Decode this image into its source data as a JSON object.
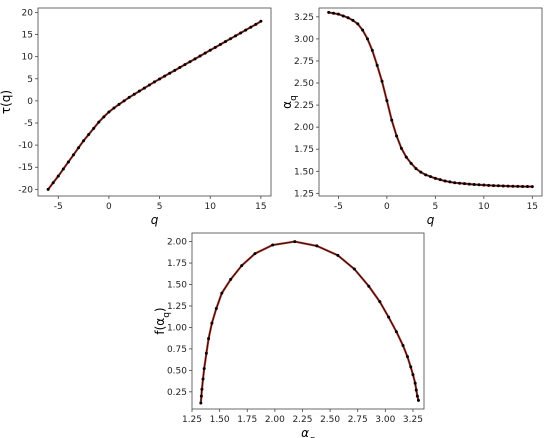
{
  "colors": {
    "line": "#c0392b",
    "marker": "#000000",
    "background": "#ffffff"
  },
  "chart_data": [
    {
      "id": "tau",
      "type": "line",
      "xlabel": "q",
      "ylabel": "τ(q)",
      "xlim": [
        -7,
        16
      ],
      "ylim": [
        -21.5,
        21
      ],
      "xticks": [
        -5,
        0,
        5,
        10,
        15
      ],
      "yticks": [
        -20,
        -15,
        -10,
        -5,
        0,
        5,
        10,
        15,
        20
      ],
      "grid": false,
      "x": [
        -6,
        -5.5,
        -5,
        -4.5,
        -4,
        -3.5,
        -3,
        -2.5,
        -2,
        -1.5,
        -1,
        -0.5,
        0,
        0.5,
        1,
        1.5,
        2,
        2.5,
        3,
        3.5,
        4,
        4.5,
        5,
        5.5,
        6,
        6.5,
        7,
        7.5,
        8,
        8.5,
        9,
        9.5,
        10,
        10.5,
        11,
        11.5,
        12,
        12.5,
        13,
        13.5,
        14,
        14.5,
        15
      ],
      "y": [
        -20,
        -18.5,
        -17,
        -15.4,
        -13.8,
        -12.2,
        -10.6,
        -9.0,
        -7.6,
        -6.2,
        -4.8,
        -3.6,
        -2.5,
        -1.6,
        -0.8,
        0.0,
        0.8,
        1.5,
        2.2,
        2.9,
        3.6,
        4.3,
        4.95,
        5.6,
        6.25,
        6.9,
        7.55,
        8.2,
        8.85,
        9.5,
        10.15,
        10.8,
        11.45,
        12.1,
        12.75,
        13.4,
        14.05,
        14.7,
        15.35,
        16.0,
        16.65,
        17.3,
        18.0
      ]
    },
    {
      "id": "alpha",
      "type": "line",
      "xlabel": "q",
      "ylabel": "α_q",
      "xlim": [
        -7,
        16
      ],
      "ylim": [
        1.22,
        3.35
      ],
      "xticks": [
        -5,
        0,
        5,
        10,
        15
      ],
      "yticks": [
        1.25,
        1.5,
        1.75,
        2.0,
        2.25,
        2.5,
        2.75,
        3.0,
        3.25
      ],
      "grid": false,
      "x": [
        -6,
        -5.5,
        -5,
        -4.5,
        -4,
        -3.5,
        -3,
        -2.5,
        -2,
        -1.5,
        -1,
        -0.5,
        0,
        0.5,
        1,
        1.5,
        2,
        2.5,
        3,
        3.5,
        4,
        4.5,
        5,
        5.5,
        6,
        6.5,
        7,
        7.5,
        8,
        8.5,
        9,
        9.5,
        10,
        10.5,
        11,
        11.5,
        12,
        12.5,
        13,
        13.5,
        14,
        14.5,
        15
      ],
      "y": [
        3.3,
        3.29,
        3.28,
        3.26,
        3.24,
        3.21,
        3.17,
        3.1,
        3.0,
        2.87,
        2.7,
        2.52,
        2.3,
        2.08,
        1.9,
        1.76,
        1.66,
        1.59,
        1.53,
        1.49,
        1.46,
        1.44,
        1.42,
        1.405,
        1.39,
        1.38,
        1.37,
        1.365,
        1.36,
        1.355,
        1.35,
        1.347,
        1.344,
        1.341,
        1.338,
        1.336,
        1.334,
        1.332,
        1.33,
        1.329,
        1.328,
        1.327,
        1.326
      ]
    },
    {
      "id": "spectrum",
      "type": "line",
      "xlabel": "α_q",
      "ylabel": "f(α_q)",
      "xlim": [
        1.25,
        3.35
      ],
      "ylim": [
        0.05,
        2.1
      ],
      "xticks": [
        1.25,
        1.5,
        1.75,
        2.0,
        2.25,
        2.5,
        2.75,
        3.0,
        3.25
      ],
      "yticks": [
        0.25,
        0.5,
        0.75,
        1.0,
        1.25,
        1.5,
        1.75,
        2.0
      ],
      "grid": false,
      "x": [
        1.33,
        1.335,
        1.34,
        1.35,
        1.36,
        1.38,
        1.4,
        1.43,
        1.47,
        1.52,
        1.6,
        1.7,
        1.82,
        1.98,
        2.18,
        2.38,
        2.57,
        2.72,
        2.85,
        2.95,
        3.03,
        3.1,
        3.16,
        3.2,
        3.23,
        3.25,
        3.27,
        3.28,
        3.29,
        3.3
      ],
      "y": [
        0.12,
        0.2,
        0.28,
        0.4,
        0.52,
        0.7,
        0.87,
        1.05,
        1.22,
        1.4,
        1.56,
        1.72,
        1.86,
        1.96,
        2.0,
        1.95,
        1.84,
        1.68,
        1.48,
        1.3,
        1.12,
        0.95,
        0.79,
        0.66,
        0.54,
        0.45,
        0.35,
        0.27,
        0.2,
        0.15
      ]
    }
  ]
}
